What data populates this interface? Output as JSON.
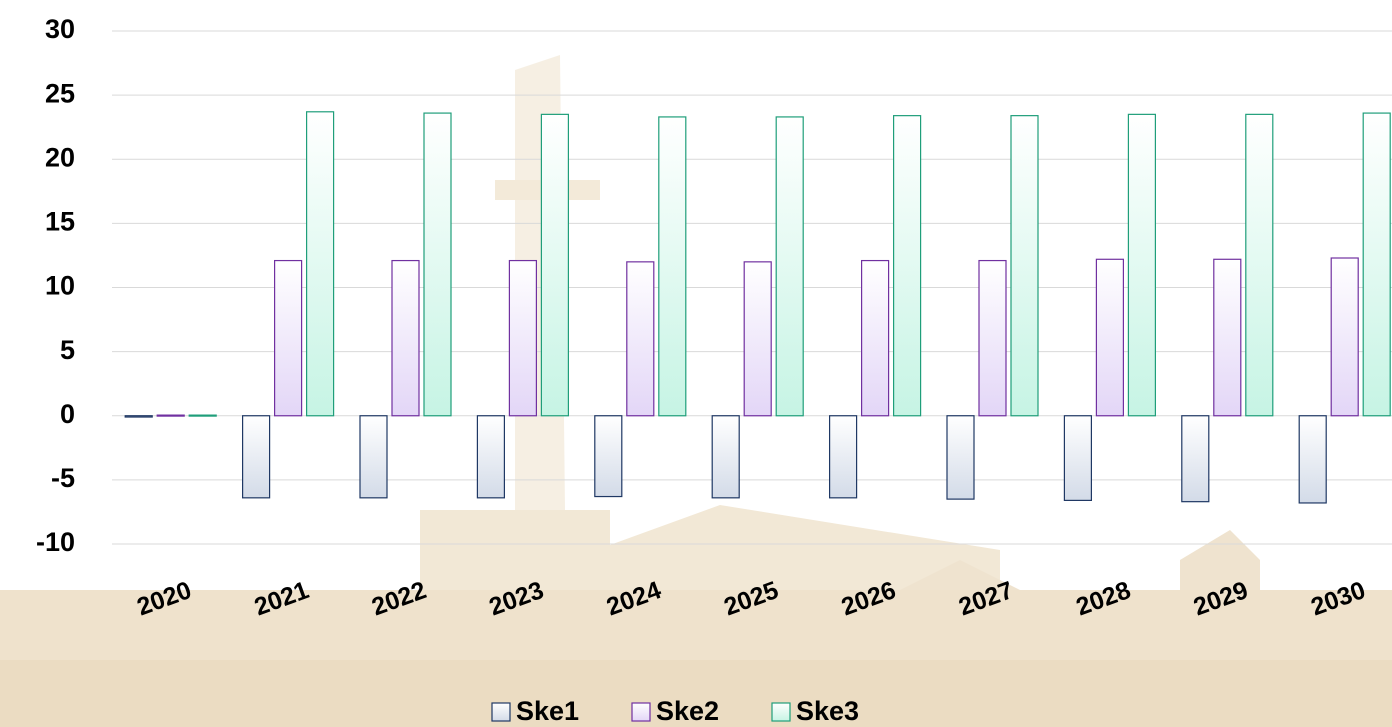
{
  "chart_data": {
    "type": "bar",
    "categories": [
      "2020",
      "2021",
      "2022",
      "2023",
      "2024",
      "2025",
      "2026",
      "2027",
      "2028",
      "2029",
      "2030"
    ],
    "series": [
      {
        "name": "Ske1",
        "color": "#d3dbe8",
        "edgecolor": "#1f3864",
        "values": [
          -0.1,
          -6.4,
          -6.4,
          -6.4,
          -6.3,
          -6.4,
          -6.4,
          -6.5,
          -6.6,
          -6.7,
          -6.8
        ]
      },
      {
        "name": "Ske2",
        "color": "#e3d6f7",
        "edgecolor": "#7030a0",
        "values": [
          0.05,
          12.1,
          12.1,
          12.1,
          12.0,
          12.0,
          12.1,
          12.1,
          12.2,
          12.2,
          12.3
        ]
      },
      {
        "name": "Ske3",
        "color": "#c6f4e4",
        "edgecolor": "#1f9e7a",
        "values": [
          0.05,
          23.7,
          23.6,
          23.5,
          23.3,
          23.3,
          23.4,
          23.4,
          23.5,
          23.5,
          23.6
        ]
      }
    ],
    "ylim": [
      -10,
      30
    ],
    "yticks": [
      -10,
      -5,
      0,
      5,
      10,
      15,
      20,
      25,
      30
    ],
    "grid": true,
    "legend": "bottom"
  }
}
